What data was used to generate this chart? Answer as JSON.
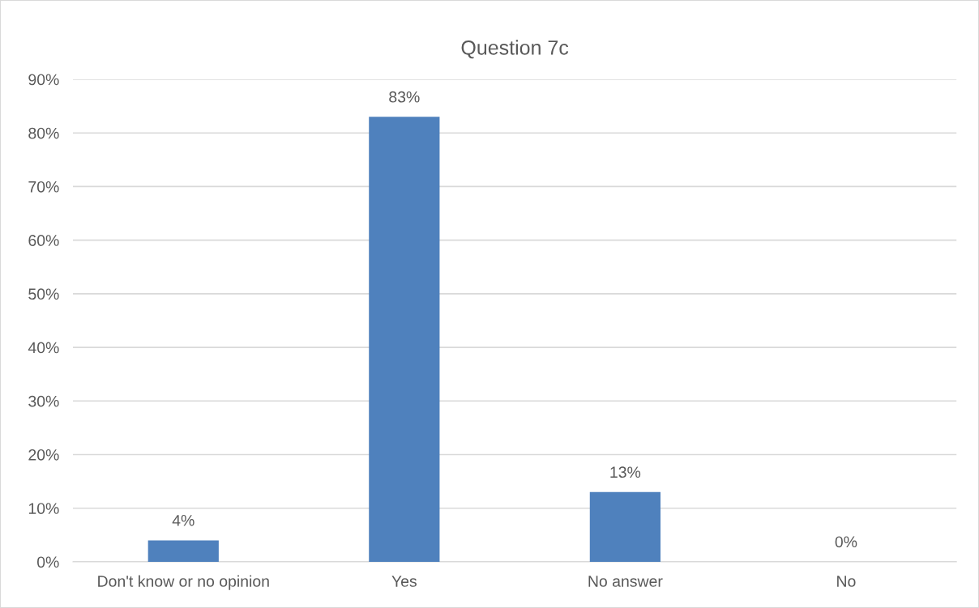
{
  "chart_data": {
    "type": "bar",
    "title": "Question 7c",
    "categories": [
      "Don't know or no opinion",
      "Yes",
      "No answer",
      "No"
    ],
    "values": [
      4,
      83,
      13,
      0
    ],
    "color": "#4f81bd",
    "value_labels": [
      "4%",
      "83%",
      "13%",
      "0%"
    ],
    "ylim": [
      0,
      90
    ],
    "yticks": [
      {
        "value": 0,
        "label": "0%"
      },
      {
        "value": 10,
        "label": "10%"
      },
      {
        "value": 20,
        "label": "20%"
      },
      {
        "value": 30,
        "label": "30%"
      },
      {
        "value": 40,
        "label": "40%"
      },
      {
        "value": 50,
        "label": "50%"
      },
      {
        "value": 60,
        "label": "60%"
      },
      {
        "value": 70,
        "label": "70%"
      },
      {
        "value": 80,
        "label": "80%"
      },
      {
        "value": 90,
        "label": "90%"
      }
    ],
    "grid": "y",
    "legend": false
  }
}
